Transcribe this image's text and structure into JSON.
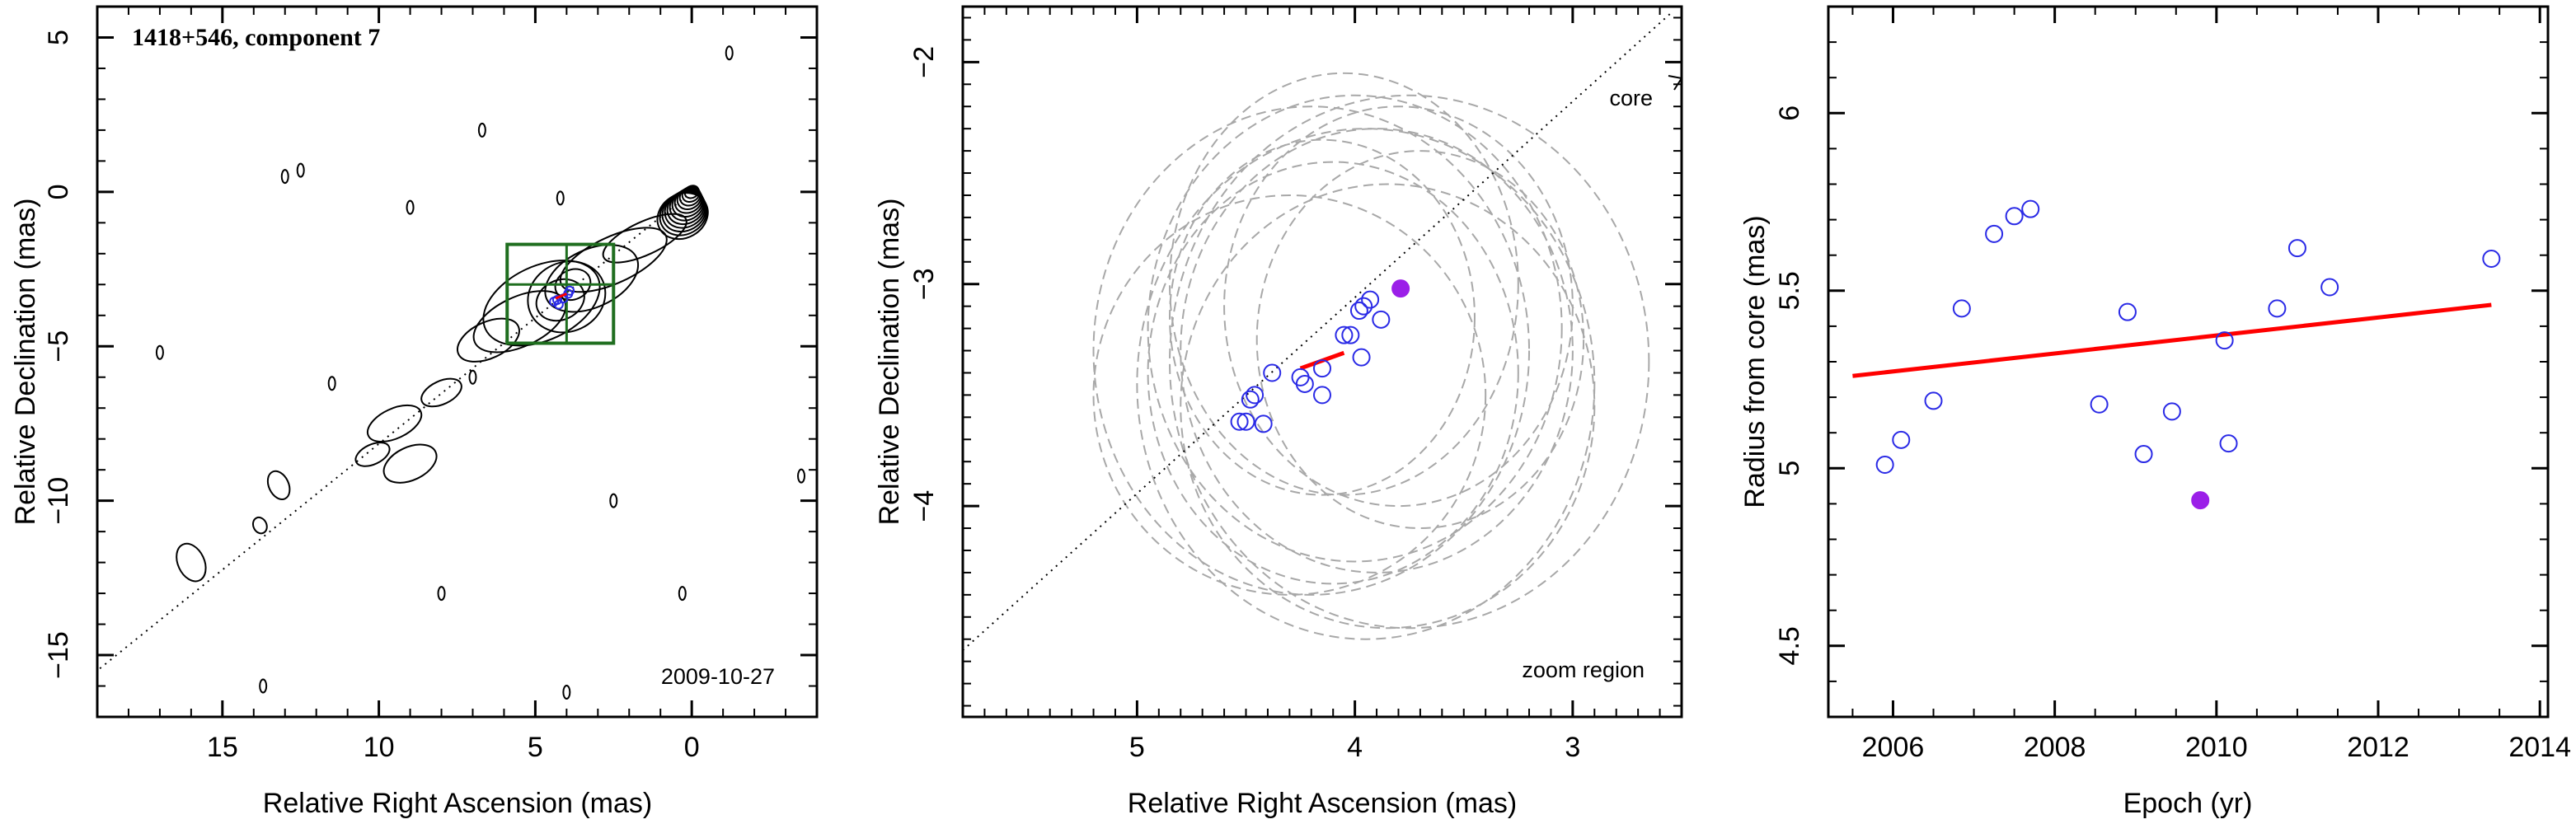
{
  "chart_data": [
    {
      "panel": "left",
      "type": "contour",
      "title": "1418+546, component 7",
      "date_label": "2009-10-27",
      "xlabel": "Relative Right Ascension (mas)",
      "ylabel": "Relative Declination (mas)",
      "xlim": [
        19,
        -4
      ],
      "ylim": [
        -17,
        6
      ],
      "x_ticks": [
        15,
        10,
        5,
        0
      ],
      "y_ticks": [
        5,
        0,
        -5,
        -10,
        -15
      ],
      "x_tick_labels": [
        "15",
        "10",
        "5",
        "0"
      ],
      "y_tick_labels": [
        "5",
        "0",
        "−5",
        "−10",
        "−15"
      ],
      "core": {
        "x": 0,
        "y": 0,
        "n_contours": 12
      },
      "jet_direction_line": {
        "from": [
          0,
          0
        ],
        "to": [
          19,
          -15.5
        ],
        "style": "dotted"
      },
      "zoom_box": {
        "x_range": [
          5.9,
          2.5
        ],
        "y_range": [
          -4.9,
          -1.7
        ],
        "cross": [
          4.0,
          -3.0
        ],
        "color": "#1f6e1f"
      },
      "component_positions": [
        {
          "x": 4.4,
          "y": -3.55
        },
        {
          "x": 4.3,
          "y": -3.5
        },
        {
          "x": 4.1,
          "y": -3.45
        },
        {
          "x": 3.95,
          "y": -3.3
        },
        {
          "x": 3.9,
          "y": -3.2
        },
        {
          "x": 4.25,
          "y": -3.65
        }
      ],
      "colors": {
        "contours": "#000000",
        "components": "#2a2ae6",
        "highlight": "#9b1fe8",
        "fit": "#ff0000"
      }
    },
    {
      "panel": "middle",
      "type": "scatter",
      "title": "",
      "core_label": "core",
      "zoom_label": "zoom region",
      "xlabel": "Relative Right Ascension (mas)",
      "ylabel": "Relative Declination (mas)",
      "xlim": [
        5.8,
        2.5
      ],
      "ylim": [
        -4.95,
        -1.75
      ],
      "x_ticks": [
        5,
        4,
        3
      ],
      "y_ticks": [
        -2,
        -3,
        -4
      ],
      "x_tick_labels": [
        "5",
        "4",
        "3"
      ],
      "y_tick_labels": [
        "−2",
        "−3",
        "−4"
      ],
      "points": [
        {
          "x": 4.53,
          "y": -3.62
        },
        {
          "x": 4.5,
          "y": -3.62
        },
        {
          "x": 4.42,
          "y": -3.63
        },
        {
          "x": 4.48,
          "y": -3.52
        },
        {
          "x": 4.46,
          "y": -3.5
        },
        {
          "x": 4.38,
          "y": -3.4
        },
        {
          "x": 4.23,
          "y": -3.45
        },
        {
          "x": 4.25,
          "y": -3.42
        },
        {
          "x": 4.15,
          "y": -3.5
        },
        {
          "x": 4.15,
          "y": -3.38
        },
        {
          "x": 4.05,
          "y": -3.23
        },
        {
          "x": 4.02,
          "y": -3.23
        },
        {
          "x": 3.97,
          "y": -3.33
        },
        {
          "x": 3.98,
          "y": -3.12
        },
        {
          "x": 3.96,
          "y": -3.1
        },
        {
          "x": 3.93,
          "y": -3.07
        },
        {
          "x": 3.88,
          "y": -3.16
        }
      ],
      "highlight_point": {
        "x": 3.79,
        "y": -3.02
      },
      "fit_segment": [
        {
          "x": 4.25,
          "y": -3.38
        },
        {
          "x": 4.05,
          "y": -3.31
        }
      ],
      "error_ellipses": [
        {
          "cx": 3.9,
          "cy": -3.3,
          "rx": 0.9,
          "ry": 1.0
        },
        {
          "cx": 4.0,
          "cy": -3.2,
          "rx": 0.95,
          "ry": 1.05
        },
        {
          "cx": 4.1,
          "cy": -3.4,
          "rx": 0.85,
          "ry": 0.95
        },
        {
          "cx": 3.8,
          "cy": -3.1,
          "rx": 0.8,
          "ry": 0.9
        },
        {
          "cx": 4.2,
          "cy": -3.3,
          "rx": 1.0,
          "ry": 1.1
        },
        {
          "cx": 3.7,
          "cy": -3.25,
          "rx": 0.75,
          "ry": 0.85
        },
        {
          "cx": 4.3,
          "cy": -3.5,
          "rx": 0.9,
          "ry": 0.9
        },
        {
          "cx": 3.95,
          "cy": -3.45,
          "rx": 1.05,
          "ry": 1.15
        },
        {
          "cx": 4.05,
          "cy": -3.0,
          "rx": 0.8,
          "ry": 0.95
        },
        {
          "cx": 3.85,
          "cy": -3.55,
          "rx": 0.95,
          "ry": 1.0
        },
        {
          "cx": 4.15,
          "cy": -3.15,
          "rx": 0.7,
          "ry": 0.8
        },
        {
          "cx": 3.75,
          "cy": -3.35,
          "rx": 1.1,
          "ry": 1.2
        }
      ],
      "jet_direction_line": {
        "from": [
          5.8,
          -4.65
        ],
        "to": [
          2.55,
          -1.78
        ],
        "style": "dotted"
      },
      "colors": {
        "points": "#2a2ae6",
        "highlight": "#9b1fe8",
        "fit": "#ff0000",
        "ellipses": "#a8a8a8"
      }
    },
    {
      "panel": "right",
      "type": "scatter",
      "title": "",
      "xlabel": "Epoch (yr)",
      "ylabel": "Radius from core (mas)",
      "xlim": [
        2005.2,
        2014.1
      ],
      "ylim": [
        4.3,
        6.3
      ],
      "x_ticks": [
        2006,
        2008,
        2010,
        2012,
        2014
      ],
      "y_ticks": [
        4.5,
        5,
        5.5,
        6
      ],
      "x_tick_labels": [
        "2006",
        "2008",
        "2010",
        "2012",
        "2014"
      ],
      "y_tick_labels": [
        "4.5",
        "5",
        "5.5",
        "6"
      ],
      "points": [
        {
          "x": 2005.9,
          "y": 5.01
        },
        {
          "x": 2006.1,
          "y": 5.08
        },
        {
          "x": 2006.5,
          "y": 5.19
        },
        {
          "x": 2006.85,
          "y": 5.45
        },
        {
          "x": 2007.25,
          "y": 5.66
        },
        {
          "x": 2007.5,
          "y": 5.71
        },
        {
          "x": 2007.7,
          "y": 5.73
        },
        {
          "x": 2008.55,
          "y": 5.18
        },
        {
          "x": 2008.9,
          "y": 5.44
        },
        {
          "x": 2009.1,
          "y": 5.04
        },
        {
          "x": 2009.45,
          "y": 5.16
        },
        {
          "x": 2010.1,
          "y": 5.36
        },
        {
          "x": 2010.15,
          "y": 5.07
        },
        {
          "x": 2010.75,
          "y": 5.45
        },
        {
          "x": 2011.0,
          "y": 5.62
        },
        {
          "x": 2011.4,
          "y": 5.51
        },
        {
          "x": 2013.4,
          "y": 5.59
        }
      ],
      "highlight_point": {
        "x": 2009.8,
        "y": 4.91
      },
      "fit_line": [
        {
          "x": 2005.5,
          "y": 5.26
        },
        {
          "x": 2013.4,
          "y": 5.46
        }
      ],
      "colors": {
        "points": "#2a2ae6",
        "highlight": "#9b1fe8",
        "fit": "#ff0000"
      }
    }
  ]
}
